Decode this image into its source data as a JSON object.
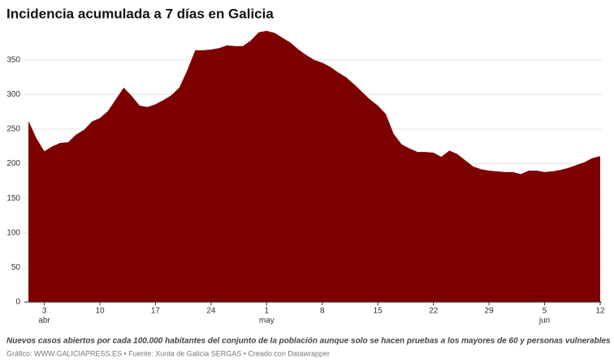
{
  "chart_data": {
    "type": "area",
    "title": "Incidencia acumulada a 7 días en Galicia",
    "caption": "Nuevos casos abiertos por cada 100.000 habitantes del conjunto de la población aunque solo se hacen pruebas a los mayores de 60 y personas vulnerables",
    "footer": "Gráfico: WWW.GALICIAPRESS.ES • Fuente: Xunta de Galicia SERGAS • Creado con Datawrapper",
    "color": "#7d0000",
    "grid": true,
    "ylim": [
      0,
      392
    ],
    "yticks": [
      0,
      50,
      100,
      150,
      200,
      250,
      300,
      350
    ],
    "categories": [
      null,
      null,
      "3",
      null,
      null,
      null,
      null,
      null,
      null,
      "10",
      null,
      null,
      null,
      null,
      null,
      null,
      "17",
      null,
      null,
      null,
      null,
      null,
      null,
      "24",
      null,
      null,
      null,
      null,
      null,
      null,
      "1",
      null,
      null,
      null,
      null,
      null,
      null,
      "8",
      null,
      null,
      null,
      null,
      null,
      null,
      "15",
      null,
      null,
      null,
      null,
      null,
      null,
      "22",
      null,
      null,
      null,
      null,
      null,
      null,
      "29",
      null,
      null,
      null,
      null,
      null,
      null,
      "5",
      null,
      null,
      null,
      null,
      null,
      null,
      "12"
    ],
    "category_months": [
      null,
      null,
      "abr",
      null,
      null,
      null,
      null,
      null,
      null,
      null,
      null,
      null,
      null,
      null,
      null,
      null,
      null,
      null,
      null,
      null,
      null,
      null,
      null,
      null,
      null,
      null,
      null,
      null,
      null,
      null,
      "may",
      null,
      null,
      null,
      null,
      null,
      null,
      null,
      null,
      null,
      null,
      null,
      null,
      null,
      null,
      null,
      null,
      null,
      null,
      null,
      null,
      null,
      null,
      null,
      null,
      null,
      null,
      null,
      null,
      null,
      null,
      null,
      null,
      null,
      null,
      "jun",
      null,
      null,
      null,
      null,
      null,
      null,
      null
    ],
    "values": [
      262,
      237,
      218,
      225,
      230,
      231,
      242,
      249,
      261,
      266,
      276,
      293,
      310,
      298,
      284,
      282,
      286,
      292,
      299,
      310,
      335,
      364,
      364,
      365,
      367,
      371,
      370,
      370,
      378,
      390,
      392,
      389,
      382,
      375,
      365,
      357,
      350,
      346,
      340,
      332,
      325,
      315,
      304,
      293,
      284,
      272,
      243,
      228,
      222,
      217,
      217,
      216,
      210,
      219,
      214,
      205,
      196,
      192,
      190,
      189,
      188,
      188,
      185,
      190,
      190,
      188,
      189,
      191,
      194,
      198,
      202,
      208,
      211
    ]
  }
}
